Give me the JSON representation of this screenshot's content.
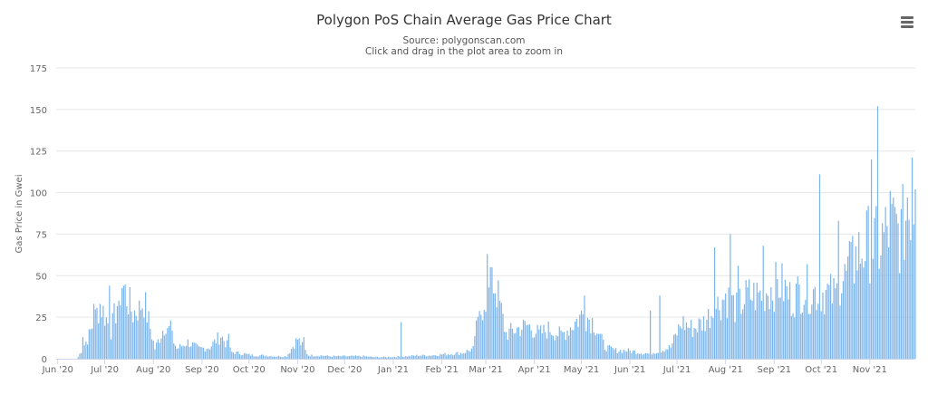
{
  "colors": {
    "bar": "#7cb5ec",
    "grid": "#e6e6e6",
    "axis_line": "#ccd6eb",
    "text": "#666666"
  },
  "menu_icon": "hamburger-menu-icon",
  "chart_data": {
    "type": "bar",
    "title": "Polygon PoS Chain Average Gas Price Chart",
    "subtitle": "Source: polygonscan.com",
    "subtitle2": "Click and drag in the plot area to zoom in",
    "ylabel": "Gas Price in Gwei",
    "xlabel": "",
    "ylim": [
      0,
      175
    ],
    "yticks": [
      0,
      25,
      50,
      75,
      100,
      125,
      150,
      175
    ],
    "grid": true,
    "legend": "none",
    "x_start": "2020-05-31",
    "x_end": "2021-11-30",
    "xticks": [
      {
        "date": "2020-06-01",
        "label": "Jun '20"
      },
      {
        "date": "2020-07-01",
        "label": "Jul '20"
      },
      {
        "date": "2020-08-01",
        "label": "Aug '20"
      },
      {
        "date": "2020-09-01",
        "label": "Sep '20"
      },
      {
        "date": "2020-10-01",
        "label": "Oct '20"
      },
      {
        "date": "2020-11-01",
        "label": "Nov '20"
      },
      {
        "date": "2020-12-01",
        "label": "Dec '20"
      },
      {
        "date": "2021-01-01",
        "label": "Jan '21"
      },
      {
        "date": "2021-02-01",
        "label": "Feb '21"
      },
      {
        "date": "2021-03-01",
        "label": "Mar '21"
      },
      {
        "date": "2021-04-01",
        "label": "Apr '21"
      },
      {
        "date": "2021-05-01",
        "label": "May '21"
      },
      {
        "date": "2021-06-01",
        "label": "Jun '21"
      },
      {
        "date": "2021-07-01",
        "label": "Jul '21"
      },
      {
        "date": "2021-08-01",
        "label": "Aug '21"
      },
      {
        "date": "2021-09-01",
        "label": "Sep '21"
      },
      {
        "date": "2021-10-01",
        "label": "Oct '21"
      },
      {
        "date": "2021-11-01",
        "label": "Nov '21"
      }
    ],
    "series": [
      {
        "dates_weekly": [
          "2020-06-14",
          "2020-06-21",
          "2020-06-28",
          "2020-07-05",
          "2020-07-12",
          "2020-07-19",
          "2020-07-26",
          "2020-08-02",
          "2020-08-09",
          "2020-08-16",
          "2020-08-23",
          "2020-08-30",
          "2020-09-06",
          "2020-09-13",
          "2020-09-20",
          "2020-09-27",
          "2020-10-04",
          "2020-10-11",
          "2020-10-18",
          "2020-10-25",
          "2020-11-01",
          "2020-11-08",
          "2020-11-15",
          "2020-11-22",
          "2020-11-29",
          "2020-12-06",
          "2020-12-13",
          "2020-12-20",
          "2020-12-27",
          "2021-01-03",
          "2021-01-10",
          "2021-01-17",
          "2021-01-24",
          "2021-01-31",
          "2021-02-07",
          "2021-02-14",
          "2021-02-21",
          "2021-02-28",
          "2021-03-07",
          "2021-03-14",
          "2021-03-21",
          "2021-03-28",
          "2021-04-04",
          "2021-04-11",
          "2021-04-18",
          "2021-04-25",
          "2021-05-02",
          "2021-05-09",
          "2021-05-16",
          "2021-05-23",
          "2021-05-30",
          "2021-06-06",
          "2021-06-13",
          "2021-06-20",
          "2021-06-27",
          "2021-07-04",
          "2021-07-11",
          "2021-07-18",
          "2021-07-25",
          "2021-08-01",
          "2021-08-08",
          "2021-08-15",
          "2021-08-22",
          "2021-08-29",
          "2021-09-05",
          "2021-09-12",
          "2021-09-19",
          "2021-09-26",
          "2021-10-03",
          "2021-10-10",
          "2021-10-17",
          "2021-10-24",
          "2021-10-31",
          "2021-11-07",
          "2021-11-14",
          "2021-11-21",
          "2021-11-28"
        ],
        "weekly_values": [
          1,
          14,
          33,
          17,
          45,
          27,
          35,
          6,
          22,
          6,
          10,
          6,
          7,
          14,
          4,
          3,
          2,
          2,
          1.5,
          1.5,
          12,
          2,
          2,
          1.5,
          1.5,
          1.5,
          1.5,
          1,
          1,
          1.2,
          1.5,
          2,
          2,
          2.5,
          3,
          3.5,
          6,
          37,
          45,
          15,
          18,
          20,
          15,
          18,
          14,
          20,
          27,
          22,
          7,
          5,
          5,
          4,
          3,
          5,
          7,
          22,
          18,
          22,
          30,
          38,
          30,
          38,
          38,
          42,
          45,
          36,
          42,
          40,
          40,
          38,
          50,
          62,
          70,
          68,
          80,
          75,
          98
        ],
        "daily_spikes": [
          {
            "date": "2020-06-17",
            "value": 13
          },
          {
            "date": "2020-06-24",
            "value": 33
          },
          {
            "date": "2020-07-04",
            "value": 44
          },
          {
            "date": "2020-07-10",
            "value": 35
          },
          {
            "date": "2020-07-23",
            "value": 35
          },
          {
            "date": "2020-08-12",
            "value": 23
          },
          {
            "date": "2020-09-18",
            "value": 15
          },
          {
            "date": "2020-11-05",
            "value": 13
          },
          {
            "date": "2021-01-06",
            "value": 22
          },
          {
            "date": "2021-02-23",
            "value": 23
          },
          {
            "date": "2021-03-02",
            "value": 63
          },
          {
            "date": "2021-03-05",
            "value": 55
          },
          {
            "date": "2021-05-03",
            "value": 38
          },
          {
            "date": "2021-06-14",
            "value": 29
          },
          {
            "date": "2021-06-20",
            "value": 38
          },
          {
            "date": "2021-07-25",
            "value": 67
          },
          {
            "date": "2021-08-04",
            "value": 75
          },
          {
            "date": "2021-08-09",
            "value": 56
          },
          {
            "date": "2021-08-25",
            "value": 68
          },
          {
            "date": "2021-09-22",
            "value": 57
          },
          {
            "date": "2021-09-30",
            "value": 111
          },
          {
            "date": "2021-10-12",
            "value": 83
          },
          {
            "date": "2021-10-21",
            "value": 74
          },
          {
            "date": "2021-11-02",
            "value": 120
          },
          {
            "date": "2021-11-06",
            "value": 152
          },
          {
            "date": "2021-11-14",
            "value": 101
          },
          {
            "date": "2021-11-25",
            "value": 97
          },
          {
            "date": "2021-11-28",
            "value": 121
          },
          {
            "date": "2021-11-30",
            "value": 102
          }
        ]
      }
    ]
  }
}
